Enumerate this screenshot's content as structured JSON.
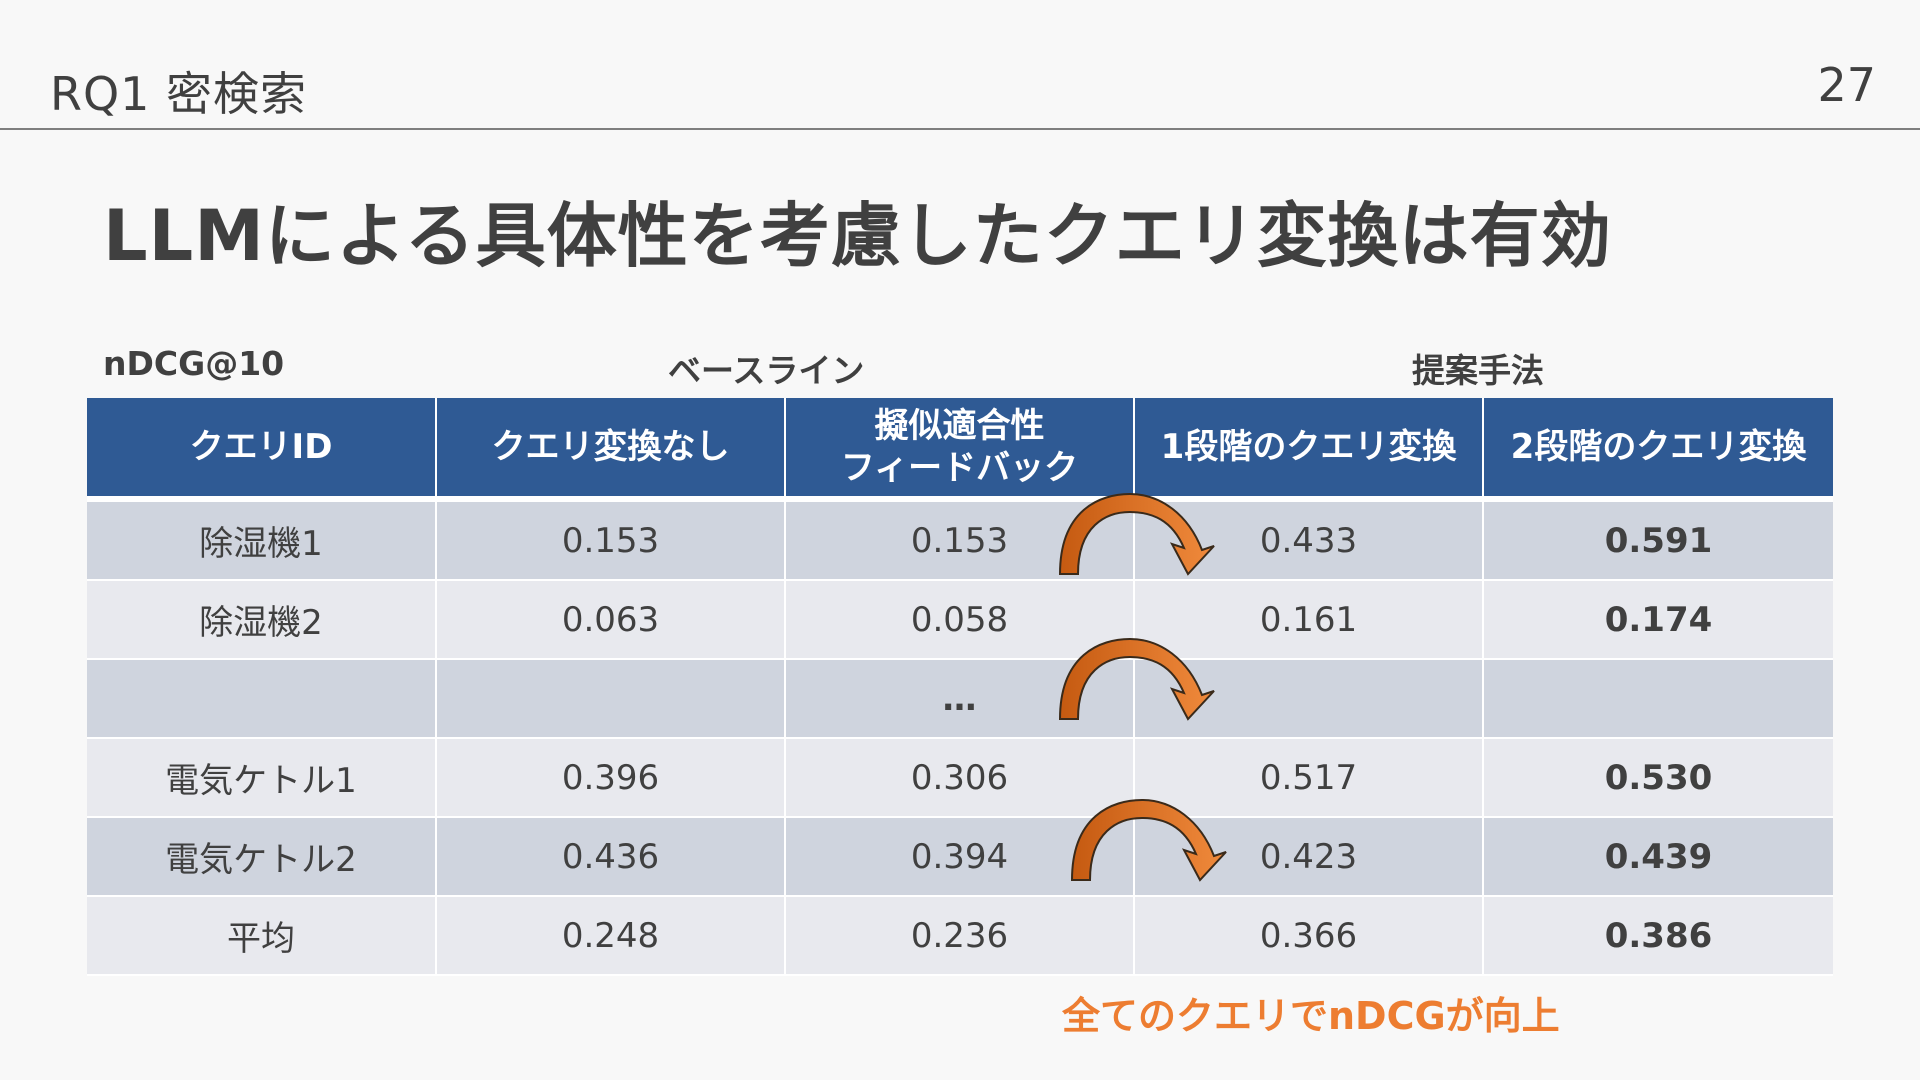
{
  "header": {
    "title": "RQ1 密検索",
    "page_number": "27"
  },
  "slide": {
    "title": "LLMによる具体性を考慮したクエリ変換は有効",
    "metric_label": "nDCG@10",
    "baseline_label": "ベースライン",
    "proposed_label": "提案手法",
    "footnote": "全てのクエリでnDCGが向上"
  },
  "table": {
    "columns": [
      "クエリID",
      "クエリ変換なし",
      "擬似適合性\nフィードバック",
      "1段階のクエリ変換",
      "2段階のクエリ変換"
    ],
    "rows": [
      {
        "query": "除湿機1",
        "no_transform": "0.153",
        "prf": "0.153",
        "one_stage": "0.433",
        "two_stage": "0.591"
      },
      {
        "query": "除湿機2",
        "no_transform": "0.063",
        "prf": "0.058",
        "one_stage": "0.161",
        "two_stage": "0.174"
      },
      {
        "query": "",
        "no_transform": "",
        "prf": "…",
        "one_stage": "",
        "two_stage": ""
      },
      {
        "query": "電気ケトル1",
        "no_transform": "0.396",
        "prf": "0.306",
        "one_stage": "0.517",
        "two_stage": "0.530"
      },
      {
        "query": "電気ケトル2",
        "no_transform": "0.436",
        "prf": "0.394",
        "one_stage": "0.423",
        "two_stage": "0.439"
      },
      {
        "query": "平均",
        "no_transform": "0.248",
        "prf": "0.236",
        "one_stage": "0.366",
        "two_stage": "0.386"
      }
    ]
  },
  "colors": {
    "header_blue": "#2f5a94",
    "accent_orange": "#ed7d31",
    "row_dark": "#cfd4de",
    "row_light": "#e8e9ee"
  },
  "icons": [
    "curved-arrow-icon"
  ]
}
